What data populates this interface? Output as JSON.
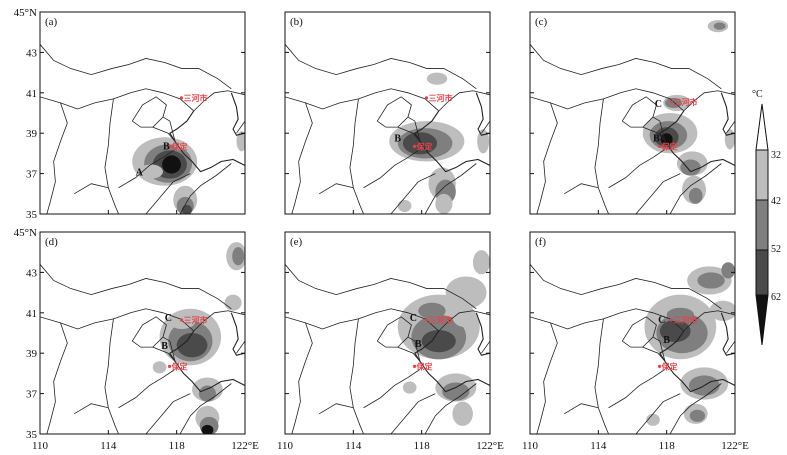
{
  "lat_ticks": [
    "45°N",
    "43",
    "41",
    "39",
    "37",
    "35"
  ],
  "lon_ticks": [
    "110",
    "114",
    "118",
    "122°E"
  ],
  "panels": [
    {
      "label": "(a)",
      "markers": [
        "A",
        "B"
      ],
      "cities": [
        "Sanhe",
        "Baoding"
      ]
    },
    {
      "label": "(b)",
      "markers": [
        "B"
      ],
      "cities": [
        "Sanhe",
        "Baoding"
      ]
    },
    {
      "label": "(c)",
      "markers": [
        "C",
        "B"
      ],
      "cities": [
        "Sanhe",
        "Baoding"
      ]
    },
    {
      "label": "(d)",
      "markers": [
        "C",
        "B"
      ],
      "cities": [
        "Sanhe",
        "Baoding"
      ]
    },
    {
      "label": "(e)",
      "markers": [
        "C",
        "B"
      ],
      "cities": [
        "Sanhe",
        "Baoding"
      ]
    },
    {
      "label": "(f)",
      "markers": [
        "C",
        "B"
      ],
      "cities": [
        "Sanhe",
        "Baoding"
      ]
    }
  ],
  "city_text": {
    "Sanhe": "三河市",
    "Baoding": "保定"
  },
  "colorbar": {
    "unit": "°C",
    "levels": [
      "32",
      "42",
      "52",
      "62"
    ],
    "colors": [
      "#ffffff",
      "#bdbdbd",
      "#7f7f7f",
      "#4a4a4a",
      "#111111"
    ]
  }
}
